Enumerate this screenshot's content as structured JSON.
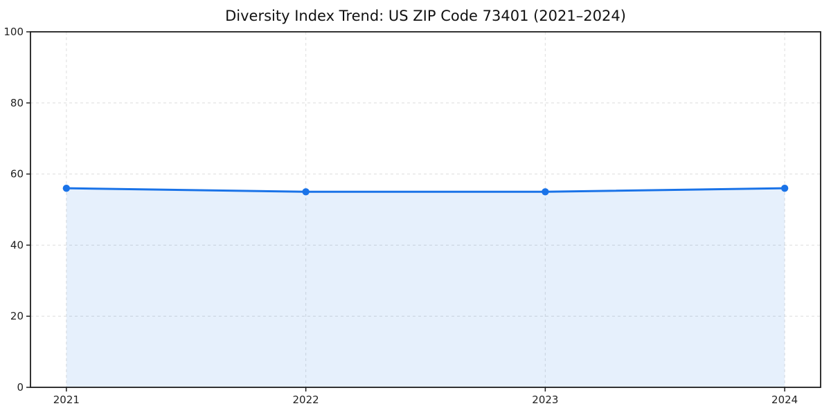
{
  "page": {
    "background": "#ffffff"
  },
  "chart_data": {
    "type": "area",
    "title": "Diversity Index Trend: US ZIP Code 73401 (2021–2024)",
    "x": [
      2021,
      2022,
      2023,
      2024
    ],
    "xtick_labels": [
      "2021",
      "2022",
      "2023",
      "2024"
    ],
    "series": [
      {
        "name": "Diversity Index",
        "values": [
          56,
          55,
          55,
          56
        ]
      }
    ],
    "xlabel": "",
    "ylabel": "",
    "ylim": [
      0,
      100
    ],
    "yticks": [
      0,
      20,
      40,
      60,
      80,
      100
    ],
    "ytick_labels": [
      "0",
      "20",
      "40",
      "60",
      "80",
      "100"
    ],
    "grid": true,
    "grid_style": "dashed",
    "legend_position": "none",
    "x_margin_frac": 0.05,
    "colors": {
      "line": "#1a73e8",
      "marker": "#1a73e8",
      "fill": "#1a73e8",
      "fill_opacity": 0.11,
      "grid": "#e0e0e0",
      "spine": "#1c1c1c",
      "tick": "#1c1c1c",
      "tick_label": "#222222",
      "title": "#111111",
      "plot_background": "#ffffff"
    }
  }
}
